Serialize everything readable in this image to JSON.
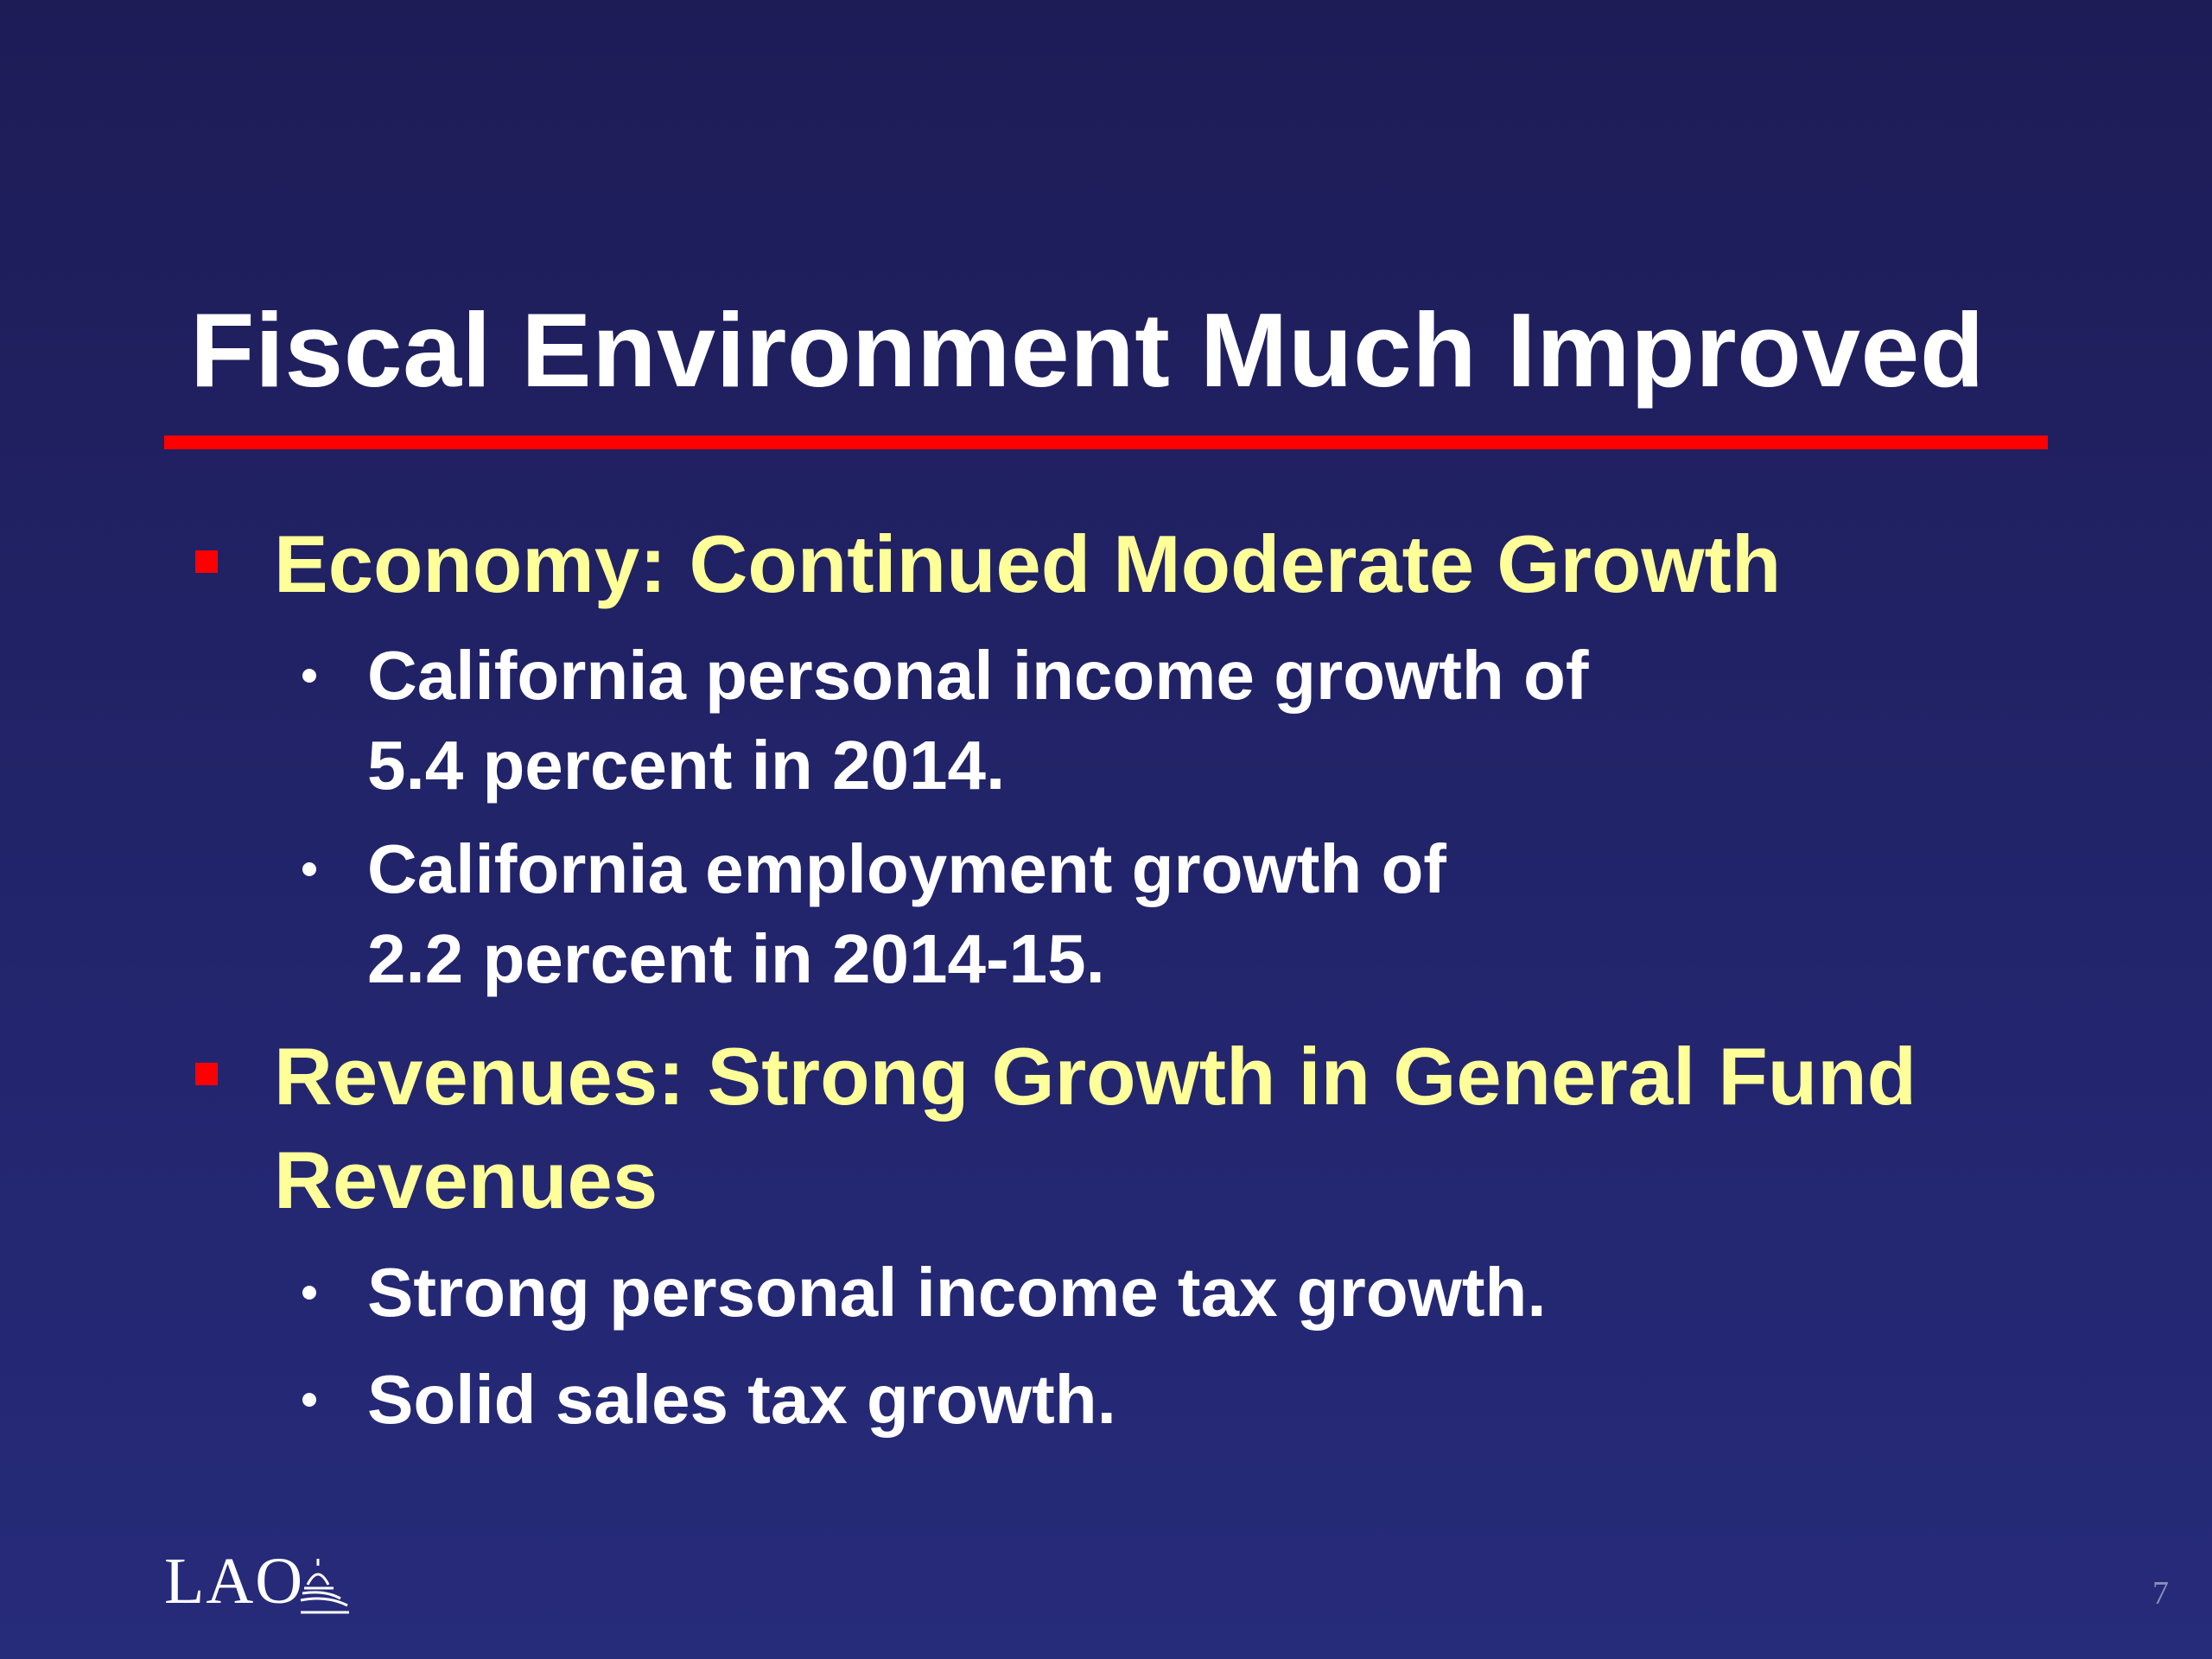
{
  "slide": {
    "title": "Fiscal Environment Much Improved",
    "sections": [
      {
        "heading_lines": [
          "Economy: Continued Moderate Growth"
        ],
        "points": [
          {
            "lines": [
              "California personal income growth of",
              "5.4 percent in 2014."
            ]
          },
          {
            "lines": [
              "California employment growth of",
              "2.2 percent in 2014-15."
            ]
          }
        ]
      },
      {
        "heading_lines": [
          "Revenues: Strong Growth in General Fund",
          "Revenues"
        ],
        "points": [
          {
            "lines": [
              "Strong personal income tax growth."
            ]
          },
          {
            "lines": [
              "Solid sales tax growth."
            ]
          }
        ]
      }
    ],
    "logo_text": "LAO",
    "logo_icon": "capitol-dome-icon",
    "page_number": "7"
  },
  "colors": {
    "background": "#22246a",
    "title": "#ffffff",
    "rule": "#ff0000",
    "heading": "#ffff99",
    "body": "#ffffff",
    "page_number": "#8a8db8"
  }
}
